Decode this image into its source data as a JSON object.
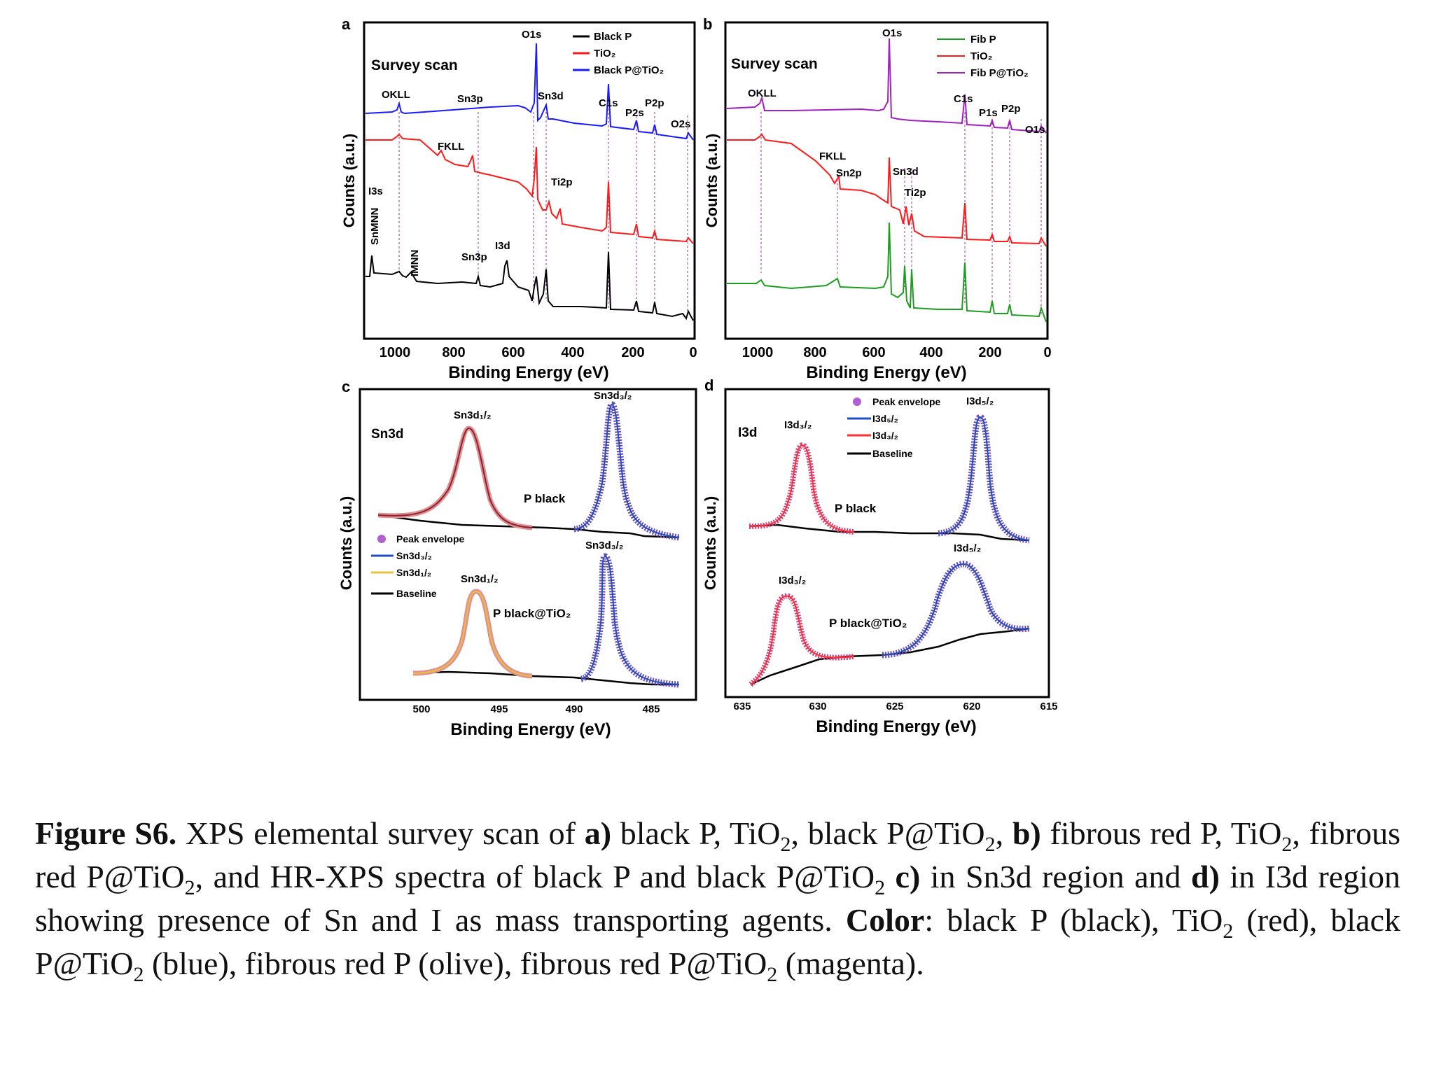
{
  "panels": [
    {
      "letter": "a",
      "title": "Survey scan",
      "xlabel": "Binding Energy (eV)",
      "ylabel": "Counts (a.u.)",
      "x_ticks": [
        "1000",
        "800",
        "600",
        "400",
        "200",
        "0"
      ],
      "legend": [
        {
          "label": "Black P",
          "color": "#000000"
        },
        {
          "label": "TiO₂",
          "color": "#ff1a1a"
        },
        {
          "label": "Black P@TiO₂",
          "color": "#1a1aff"
        }
      ],
      "peak_labels": [
        "O1s",
        "OKLL",
        "Sn3p",
        "Sn3d",
        "C1s",
        "P2s",
        "P2p",
        "O2s",
        "FKLL",
        "Ti2p",
        "I3s",
        "SnMNN",
        "IMNN",
        "I3d",
        "Sn3p"
      ]
    },
    {
      "letter": "b",
      "title": "Survey scan",
      "xlabel": "Binding Energy (eV)",
      "ylabel": "Counts (a.u.)",
      "x_ticks": [
        "1000",
        "800",
        "600",
        "400",
        "200",
        "0"
      ],
      "legend": [
        {
          "label": "Fib P",
          "color": "#1e9e1e"
        },
        {
          "label": "TiO₂",
          "color": "#ff1a1a"
        },
        {
          "label": "Fib P@TiO₂",
          "color": "#a020c0"
        }
      ],
      "peak_labels": [
        "O1s",
        "OKLL",
        "C1s",
        "P1s",
        "P2p",
        "O1s",
        "FKLL",
        "Sn2p",
        "Sn3d",
        "Ti2p"
      ]
    },
    {
      "letter": "c",
      "title": "Sn3d",
      "xlabel": "Binding Energy (eV)",
      "ylabel": "Counts (a.u.)",
      "x_ticks": [
        "500",
        "495",
        "490",
        "485"
      ],
      "sample_top": "P black",
      "sample_bottom": "P black@TiO₂",
      "peak_labels": [
        "Sn3d₁/₂",
        "Sn3d₃/₂",
        "Sn3d₃/₂",
        "Sn3d₁/₂"
      ],
      "legend": [
        {
          "label": "Peak envelope",
          "color": "#b060d0"
        },
        {
          "label": "Sn3d₃/₂",
          "color": "#2050c0"
        },
        {
          "label": "Sn3d₁/₂",
          "color": "#e8c040"
        },
        {
          "label": "Baseline",
          "color": "#000000"
        }
      ]
    },
    {
      "letter": "d",
      "title": "I3d",
      "xlabel": "Binding Energy (eV)",
      "ylabel": "Counts (a.u.)",
      "x_ticks": [
        "635",
        "630",
        "625",
        "620",
        "615"
      ],
      "sample_top": "P black",
      "sample_bottom": "P black@TiO₂",
      "peak_labels": [
        "I3d₃/₂",
        "I3d₅/₂",
        "I3d₃/₂",
        "I3d₅/₂"
      ],
      "legend": [
        {
          "label": "Peak envelope",
          "color": "#b060d0"
        },
        {
          "label": "I3d₅/₂",
          "color": "#2050c0"
        },
        {
          "label": "I3d₃/₂",
          "color": "#ff3030"
        },
        {
          "label": "Baseline",
          "color": "#000000"
        }
      ]
    }
  ],
  "caption": {
    "lead": "Figure S6.",
    "t1": " XPS elemental survey scan of ",
    "a": "a)",
    "t2": " black P, TiO",
    "t3": ", black P@TiO",
    "t4": ", ",
    "b": "b)",
    "t5": " fibrous red P, TiO",
    "t6": ", fibrous red P@TiO",
    "t7": ", and HR-XPS spectra of black P and black P@TiO",
    "t8": " ",
    "c": "c)",
    "t9": " in Sn3d region and ",
    "d": "d)",
    "t10": " in I3d region showing presence of Sn and I as mass transporting agents. ",
    "color_label": "Color",
    "t11": ": black P (black), TiO",
    "t12": " (red), black P@TiO",
    "t13": " (blue), fibrous red P (olive), fibrous red P@TiO",
    "t14": " (magenta).",
    "sub": "2"
  }
}
